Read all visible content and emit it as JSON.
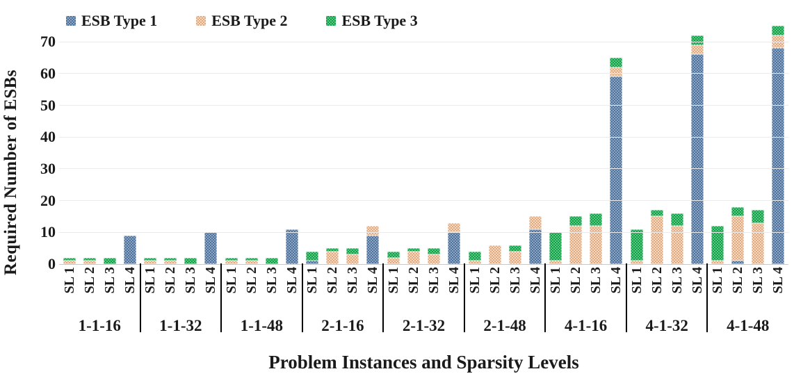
{
  "chart_data": {
    "type": "bar",
    "stacked": true,
    "title": "",
    "xlabel": "Problem Instances and Sparsity Levels",
    "ylabel": "Required Number of ESBs",
    "ylim": [
      0,
      78
    ],
    "yticks": [
      0,
      10,
      20,
      30,
      40,
      50,
      60,
      70
    ],
    "grid": "horizontal gridlines at every 10 units",
    "legend_position": "top-left, horizontal row",
    "groups": [
      "1-1-16",
      "1-1-32",
      "1-1-48",
      "2-1-16",
      "2-1-32",
      "2-1-48",
      "4-1-16",
      "4-1-32",
      "4-1-48"
    ],
    "bar_labels": [
      "SL 1",
      "SL 2",
      "SL 3",
      "SL 4"
    ],
    "series": [
      {
        "name": "ESB Type 1",
        "color": "#4c719b",
        "color_light": "#8ea6c3",
        "values_by_group": [
          [
            0,
            0,
            0,
            9
          ],
          [
            0,
            0,
            0,
            10
          ],
          [
            0,
            0,
            0,
            11
          ],
          [
            1,
            0,
            0,
            9
          ],
          [
            0,
            0,
            0,
            10
          ],
          [
            0,
            0,
            0,
            11
          ],
          [
            0,
            0,
            0,
            59
          ],
          [
            0,
            0,
            0,
            66
          ],
          [
            0,
            1,
            0,
            68
          ]
        ]
      },
      {
        "name": "ESB Type 2",
        "color": "#e2a87e",
        "color_light": "#f4d9c3",
        "values_by_group": [
          [
            1,
            1,
            0,
            0
          ],
          [
            1,
            1,
            0,
            0
          ],
          [
            1,
            1,
            0,
            0
          ],
          [
            0,
            4,
            3,
            3
          ],
          [
            2,
            4,
            3,
            3
          ],
          [
            1,
            6,
            4,
            4
          ],
          [
            1,
            12,
            12,
            3
          ],
          [
            1,
            15,
            12,
            3
          ],
          [
            1,
            14,
            13,
            4
          ]
        ]
      },
      {
        "name": "ESB Type 3",
        "color": "#09a347",
        "color_light": "#63c383",
        "values_by_group": [
          [
            1,
            1,
            2,
            0
          ],
          [
            1,
            1,
            2,
            0
          ],
          [
            1,
            1,
            2,
            0
          ],
          [
            3,
            1,
            2,
            0
          ],
          [
            2,
            1,
            2,
            0
          ],
          [
            3,
            0,
            2,
            0
          ],
          [
            9,
            3,
            4,
            3
          ],
          [
            10,
            2,
            4,
            3
          ],
          [
            11,
            3,
            4,
            3
          ]
        ]
      }
    ],
    "totals_by_group": [
      [
        2,
        2,
        2,
        9
      ],
      [
        2,
        2,
        2,
        10
      ],
      [
        2,
        2,
        2,
        11
      ],
      [
        4,
        5,
        5,
        12
      ],
      [
        4,
        5,
        5,
        13
      ],
      [
        4,
        6,
        6,
        15
      ],
      [
        10,
        15,
        16,
        65
      ],
      [
        11,
        17,
        16,
        72
      ],
      [
        12,
        18,
        17,
        75
      ]
    ]
  }
}
